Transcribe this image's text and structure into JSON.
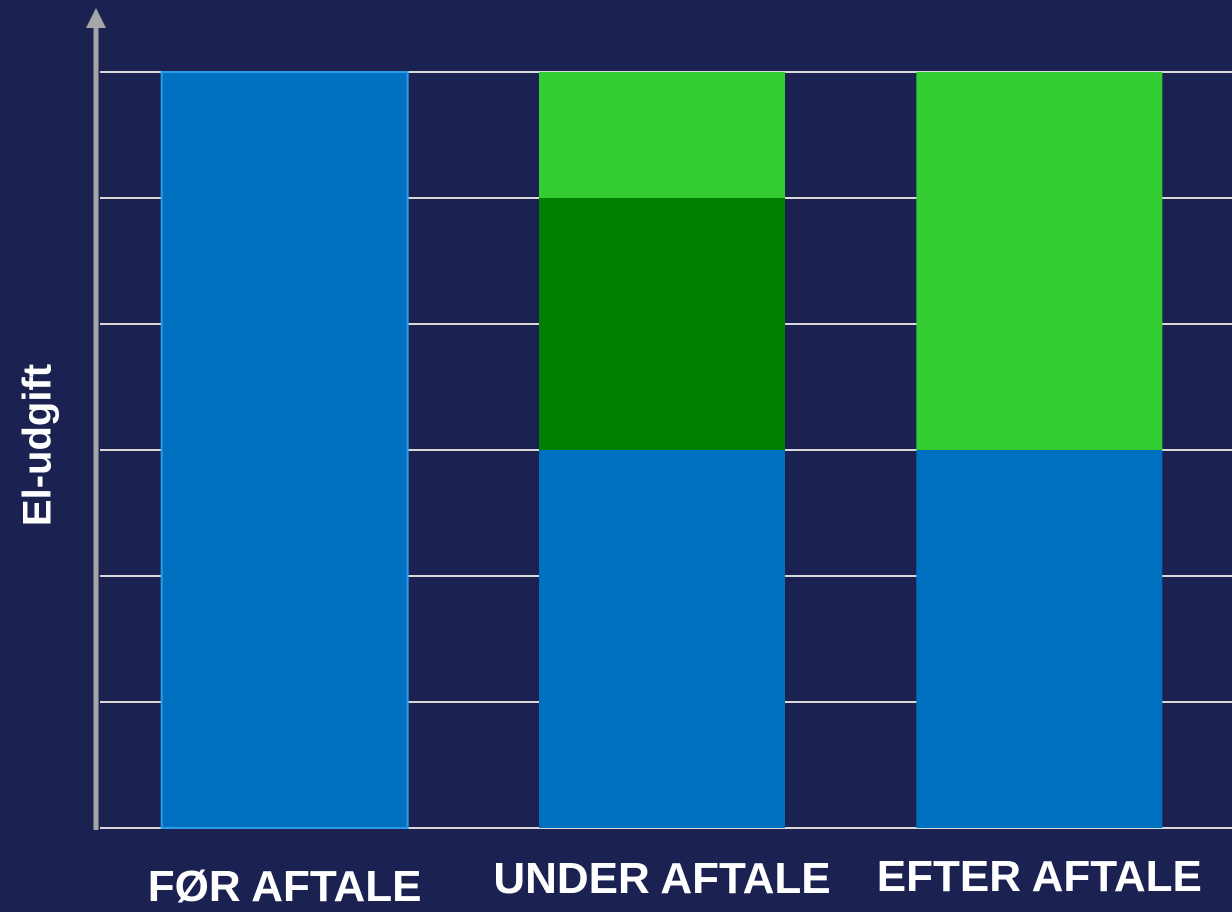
{
  "chart_data": {
    "type": "bar",
    "stacked": true,
    "categories": [
      "FØR AFTALE",
      "UNDER AFTALE",
      "EFTER AFTALE"
    ],
    "series": [
      {
        "values": [
          6,
          3,
          3
        ],
        "color": "#0070c0"
      },
      {
        "values": [
          0,
          2,
          0
        ],
        "color": "#007f00"
      },
      {
        "values": [
          0,
          1,
          3
        ],
        "color": "#33cc33"
      }
    ],
    "title": "",
    "xlabel": "",
    "ylabel": "El-udgift",
    "ylim": [
      0,
      6
    ],
    "grid": true,
    "legend": "none",
    "colors": {
      "background": "#1b2252",
      "grid": "#d9d9d9",
      "axis": "#a6a6a6",
      "text": "#ffffff"
    }
  }
}
